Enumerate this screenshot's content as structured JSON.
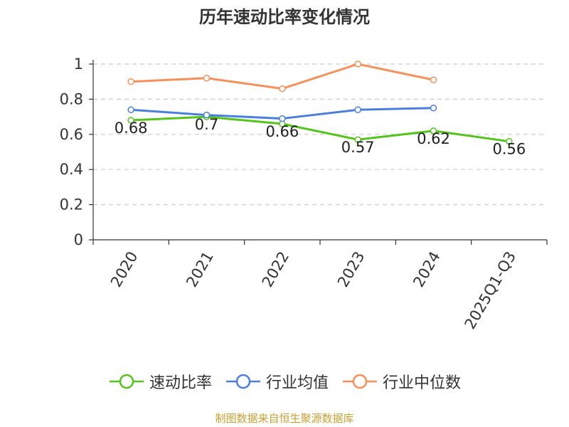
{
  "chart_data": {
    "type": "line",
    "title": "历年速动比率变化情况",
    "categories": [
      "2020",
      "2021",
      "2022",
      "2023",
      "2024",
      "2025Q1-Q3"
    ],
    "ylim": [
      0,
      1
    ],
    "yticks": [
      "0",
      "0.2",
      "0.4",
      "0.6",
      "0.8",
      "1"
    ],
    "ytick_values": [
      0,
      0.2,
      0.4,
      0.6,
      0.8,
      1
    ],
    "grid": true,
    "legend_position": "bottom",
    "series": [
      {
        "name": "速动比率",
        "color": "#52c41a",
        "values": [
          0.68,
          0.7,
          0.66,
          0.57,
          0.62,
          0.56
        ],
        "labels": [
          "0.68",
          "0.7",
          "0.66",
          "0.57",
          "0.62",
          "0.56"
        ],
        "show_labels": true
      },
      {
        "name": "行业均值",
        "color": "#4a7fdc",
        "values": [
          0.74,
          0.71,
          0.69,
          0.74,
          0.75,
          null
        ],
        "show_labels": false
      },
      {
        "name": "行业中位数",
        "color": "#f5905a",
        "values": [
          0.9,
          0.92,
          0.86,
          1.0,
          0.91,
          null
        ],
        "show_labels": false
      }
    ],
    "source": "制图数据来自恒生聚源数据库",
    "source_color": "#c8a032"
  }
}
